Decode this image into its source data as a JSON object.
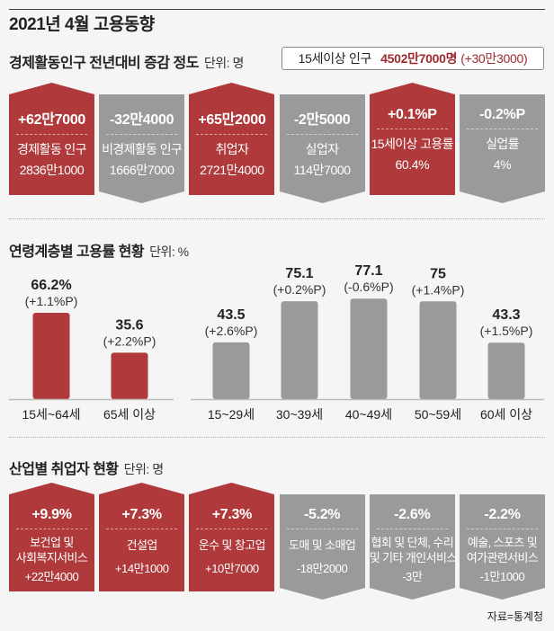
{
  "header": {
    "title": "2021년 4월 고용동향"
  },
  "section1": {
    "title": "경제활동인구 전년대비 증감 정도",
    "unit": "단위: 명",
    "population": {
      "label": "15세이상 인구",
      "value": "4502만7000명",
      "delta": "(+30만3000)"
    },
    "cards": [
      {
        "change": "+62만7000",
        "label": "경제활동 인구",
        "value": "2836만1000",
        "direction": "up"
      },
      {
        "change": "-32만4000",
        "label": "비경제활동 인구",
        "value": "1666만7000",
        "direction": "down"
      },
      {
        "change": "+65만2000",
        "label": "취업자",
        "value": "2721만4000",
        "direction": "up"
      },
      {
        "change": "-2만5000",
        "label": "실업자",
        "value": "114만7000",
        "direction": "down"
      },
      {
        "change": "+0.1%P",
        "label": "15세이상 고용률",
        "value": "60.4%",
        "direction": "up"
      },
      {
        "change": "-0.2%P",
        "label": "실업률",
        "value": "4%",
        "direction": "down"
      }
    ]
  },
  "section2": {
    "title": "연령계층별 고용률 현황",
    "unit": "단위: %"
  },
  "section3": {
    "title": "산업별 취업자 현황",
    "unit": "단위: 명",
    "cards": [
      {
        "change": "+9.9%",
        "label1": "보건업 및",
        "label2": "사회복지서비스",
        "value": "+22만4000",
        "direction": "up"
      },
      {
        "change": "+7.3%",
        "label1": "건설업",
        "label2": "",
        "value": "+14만1000",
        "direction": "up"
      },
      {
        "change": "+7.3%",
        "label1": "운수 및 창고업",
        "label2": "",
        "value": "+10만7000",
        "direction": "up"
      },
      {
        "change": "-5.2%",
        "label1": "도매 및 소매업",
        "label2": "",
        "value": "-18만2000",
        "direction": "down"
      },
      {
        "change": "-2.6%",
        "label1": "협회 및 단체, 수리",
        "label2": "및 기타 개인서비스",
        "value": "-3만",
        "direction": "down"
      },
      {
        "change": "-2.2%",
        "label1": "예술, 스포츠 및",
        "label2": "여가관련서비스",
        "value": "-1만1000",
        "direction": "down"
      }
    ]
  },
  "source": "자료=통계청",
  "colors": {
    "red": "#b0393b",
    "gray": "#9a9a9a"
  },
  "chart_data": {
    "type": "bar",
    "title": "연령계층별 고용률 현황",
    "ylabel": "단위: %",
    "groups": [
      {
        "categories": [
          "15세~64세",
          "65세 이상"
        ],
        "values": [
          66.2,
          35.6
        ],
        "value_labels": [
          "66.2%",
          "35.6"
        ],
        "changes": [
          "(+1.1%P)",
          "(+2.2%P)"
        ],
        "color": "red"
      },
      {
        "categories": [
          "15~29세",
          "30~39세",
          "40~49세",
          "50~59세",
          "60세 이상"
        ],
        "values": [
          43.5,
          75.1,
          77.1,
          75,
          43.3
        ],
        "value_labels": [
          "43.5",
          "75.1",
          "77.1",
          "75",
          "43.3"
        ],
        "changes": [
          "(+2.6%P)",
          "(+0.2%P)",
          "(-0.6%P)",
          "(+1.4%P)",
          "(+1.5%P)"
        ],
        "color": "gray"
      }
    ],
    "ylim": [
      0,
      80
    ]
  }
}
